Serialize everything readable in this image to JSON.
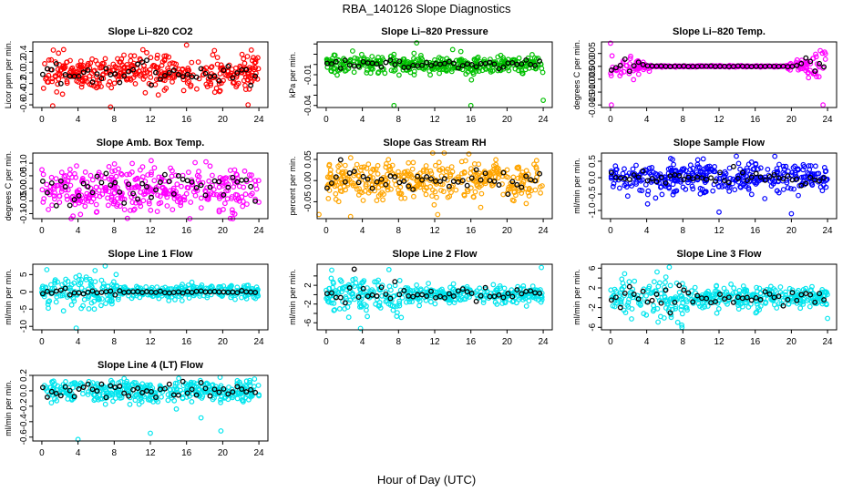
{
  "title": "RBA_140126  Slope Diagnostics",
  "xlabel": "Hour of Day (UTC)",
  "colors": {
    "black_series": "#000000",
    "frame": "#000000"
  },
  "chart_data": [
    {
      "type": "scatter",
      "title": "Slope Li–820 CO2",
      "ylabel": "Licor ppm per min.",
      "color": "#ff0000",
      "xlim": [
        -1,
        25
      ],
      "ylim": [
        -0.65,
        0.58
      ],
      "yticks": [
        -0.6,
        -0.4,
        -0.2,
        0.0,
        0.2,
        0.4
      ],
      "ytick_labels": [
        "-0.6",
        "-0.4",
        "-0.2",
        "0.0",
        "0.2",
        "0.4"
      ],
      "xticks": [
        0,
        4,
        8,
        12,
        16,
        20,
        24
      ],
      "main_sd": 0.16,
      "black_sd": 0.1,
      "outliers": [
        [
          1.2,
          -0.62
        ],
        [
          7.6,
          -0.64
        ],
        [
          16.0,
          0.52
        ],
        [
          22.8,
          -0.6
        ]
      ]
    },
    {
      "type": "scatter",
      "title": "Slope Li–820 Pressure",
      "ylabel": "kPa per min.",
      "color": "#00c000",
      "xlim": [
        -1,
        25
      ],
      "ylim": [
        -0.042,
        0.022
      ],
      "yticks": [
        -0.04,
        -0.03,
        -0.02,
        -0.01,
        0.0,
        0.01,
        0.02
      ],
      "ytick_labels": [
        "-0.04",
        "",
        "",
        "-0.01",
        "",
        "",
        ""
      ],
      "xticks": [
        0,
        4,
        8,
        12,
        16,
        20,
        24
      ],
      "main_sd": 0.0045,
      "black_sd": 0.002,
      "outliers": [
        [
          7.5,
          -0.04
        ],
        [
          16.0,
          -0.04
        ],
        [
          10.0,
          0.021
        ],
        [
          24.0,
          -0.035
        ]
      ]
    },
    {
      "type": "scatter",
      "title": "Slope Li–820 Temp.",
      "ylabel": "degrees C per min.",
      "color": "#ff00ff",
      "xlim": [
        -1,
        25
      ],
      "ylim": [
        -0.016,
        0.0095
      ],
      "yticks": [
        -0.015,
        -0.01,
        -0.005,
        0.0,
        0.005
      ],
      "ytick_labels": [
        "-0.015",
        "-0.010",
        "-0.005",
        "0.000",
        "0.005"
      ],
      "xticks": [
        0,
        4,
        8,
        12,
        16,
        20,
        24
      ],
      "main_sd": 0.004,
      "black_sd": 0.002,
      "profile": "temp",
      "outliers": [
        [
          0.0,
          0.009
        ],
        [
          0.1,
          -0.015
        ],
        [
          23.5,
          -0.015
        ]
      ]
    },
    {
      "type": "scatter",
      "title": "Slope Amb. Box Temp.",
      "ylabel": "degrees C per min.",
      "color": "#ff00ff",
      "xlim": [
        -1,
        25
      ],
      "ylim": [
        -0.12,
        0.14
      ],
      "yticks": [
        -0.1,
        -0.05,
        0.0,
        0.05,
        0.1
      ],
      "ytick_labels": [
        "-0.10",
        "-0.05",
        "0.00",
        "0.05",
        "0.10"
      ],
      "xticks": [
        0,
        4,
        8,
        12,
        16,
        20,
        24
      ],
      "main_sd": 0.045,
      "black_sd": 0.03,
      "outliers": []
    },
    {
      "type": "scatter",
      "title": "Slope Gas Stream RH",
      "ylabel": "percent per min.",
      "color": "#ffa500",
      "xlim": [
        -1,
        25
      ],
      "ylim": [
        -0.09,
        0.065
      ],
      "yticks": [
        -0.05,
        0.0,
        0.05
      ],
      "ytick_labels": [
        "-0.05",
        "0.00",
        "0.05"
      ],
      "xticks": [
        0,
        4,
        8,
        12,
        16,
        20,
        24
      ],
      "main_sd": 0.025,
      "black_sd": 0.015,
      "outliers": [
        [
          -0.8,
          -0.08
        ],
        [
          2.7,
          -0.085
        ]
      ]
    },
    {
      "type": "scatter",
      "title": "Slope Sample Flow",
      "ylabel": "ml/min per min.",
      "color": "#0000ff",
      "xlim": [
        -1,
        25
      ],
      "ylim": [
        -1.25,
        0.75
      ],
      "yticks": [
        -1.0,
        -0.5,
        0.0,
        0.5
      ],
      "ytick_labels": [
        "-1.0",
        "-0.5",
        "0.0",
        "0.5"
      ],
      "xticks": [
        0,
        4,
        8,
        12,
        16,
        20,
        24
      ],
      "main_sd": 0.22,
      "black_sd": 0.1,
      "outliers": [
        [
          12.0,
          -1.05
        ],
        [
          20.0,
          -1.1
        ],
        [
          4.1,
          -0.8
        ]
      ]
    },
    {
      "type": "scatter",
      "title": "Slope Line 1 Flow",
      "ylabel": "ml/min per min.",
      "color": "#00e5ee",
      "xlim": [
        -1,
        25
      ],
      "ylim": [
        -11,
        8
      ],
      "yticks": [
        -10,
        -5,
        0,
        5
      ],
      "ytick_labels": [
        "-10",
        "-5",
        "0",
        "5"
      ],
      "xticks": [
        0,
        4,
        8,
        12,
        16,
        20,
        24
      ],
      "main_sd": 1.5,
      "black_sd": 0.3,
      "profile": "line1",
      "outliers": [
        [
          3.8,
          -10.5
        ],
        [
          2.4,
          -5.5
        ],
        [
          7.0,
          7.5
        ]
      ]
    },
    {
      "type": "scatter",
      "title": "Slope Line 2 Flow",
      "ylabel": "ml/min per min.",
      "color": "#00e5ee",
      "xlim": [
        -1,
        25
      ],
      "ylim": [
        -7.5,
        6.5
      ],
      "yticks": [
        -6,
        -4,
        -2,
        0,
        2,
        4
      ],
      "ytick_labels": [
        "-6",
        "",
        "-2",
        "",
        "2",
        ""
      ],
      "xticks": [
        0,
        4,
        8,
        12,
        16,
        20,
        24
      ],
      "main_sd": 1.3,
      "black_sd": 0.8,
      "profile": "line2",
      "outliers": [
        [
          3.8,
          -7.2
        ],
        [
          7.8,
          -4.6
        ],
        [
          23.8,
          5.8
        ]
      ]
    },
    {
      "type": "scatter",
      "title": "Slope Line 3 Flow",
      "ylabel": "ml/min per min.",
      "color": "#00e5ee",
      "xlim": [
        -1,
        25
      ],
      "ylim": [
        -6.5,
        6.8
      ],
      "yticks": [
        -6,
        -4,
        -2,
        0,
        2,
        4,
        6
      ],
      "ytick_labels": [
        "-6",
        "",
        "-2",
        "",
        "2",
        "",
        "6"
      ],
      "xticks": [
        0,
        4,
        8,
        12,
        16,
        20,
        24
      ],
      "main_sd": 1.5,
      "black_sd": 1.0,
      "profile": "line3",
      "outliers": [
        [
          6.5,
          6.2
        ],
        [
          7.9,
          -6.0
        ],
        [
          24.0,
          -4.2
        ]
      ]
    },
    {
      "type": "scatter",
      "title": "Slope Line 4 (LT) Flow",
      "ylabel": "ml/min per min.",
      "color": "#00e5ee",
      "xlim": [
        -1,
        25
      ],
      "ylim": [
        -0.65,
        0.2
      ],
      "yticks": [
        -0.6,
        -0.4,
        -0.2,
        0.0,
        0.2
      ],
      "ytick_labels": [
        "-0.6",
        "-0.4",
        "-0.2",
        "0.0",
        "0.2"
      ],
      "xticks": [
        0,
        4,
        8,
        12,
        16,
        20,
        24
      ],
      "main_sd": 0.07,
      "black_sd": 0.05,
      "outliers": [
        [
          4.0,
          -0.63
        ],
        [
          12.0,
          -0.55
        ],
        [
          19.8,
          -0.52
        ],
        [
          17.6,
          -0.35
        ]
      ]
    }
  ]
}
